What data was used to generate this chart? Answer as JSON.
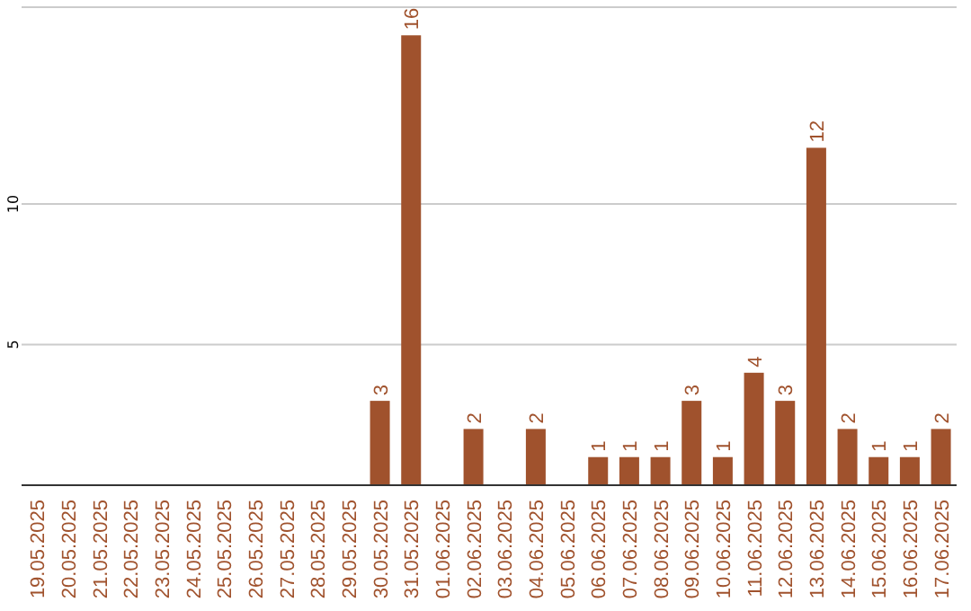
{
  "chart_data": {
    "type": "bar",
    "categories": [
      "19.05.2025",
      "20.05.2025",
      "21.05.2025",
      "22.05.2025",
      "23.05.2025",
      "24.05.2025",
      "25.05.2025",
      "26.05.2025",
      "27.05.2025",
      "28.05.2025",
      "29.05.2025",
      "30.05.2025",
      "31.05.2025",
      "01.06.2025",
      "02.06.2025",
      "03.06.2025",
      "04.06.2025",
      "05.06.2025",
      "06.06.2025",
      "07.06.2025",
      "08.06.2025",
      "09.06.2025",
      "10.06.2025",
      "11.06.2025",
      "12.06.2025",
      "13.06.2025",
      "14.06.2025",
      "15.06.2025",
      "16.06.2025",
      "17.06.2025"
    ],
    "values": [
      0,
      0,
      0,
      0,
      0,
      0,
      0,
      0,
      0,
      0,
      0,
      3,
      16,
      0,
      2,
      0,
      2,
      0,
      1,
      1,
      1,
      3,
      1,
      4,
      3,
      12,
      2,
      1,
      1,
      2
    ],
    "value_labels": [
      null,
      null,
      null,
      null,
      null,
      null,
      null,
      null,
      null,
      null,
      null,
      "3",
      "16",
      null,
      "2",
      null,
      "2",
      null,
      "1",
      "1",
      "1",
      "3",
      "1",
      "4",
      "3",
      "12",
      "2",
      "1",
      "1",
      "2"
    ],
    "color": "#a0522d",
    "ylim": [
      0,
      17
    ],
    "yticks": [
      5,
      10
    ],
    "grid": "y"
  }
}
